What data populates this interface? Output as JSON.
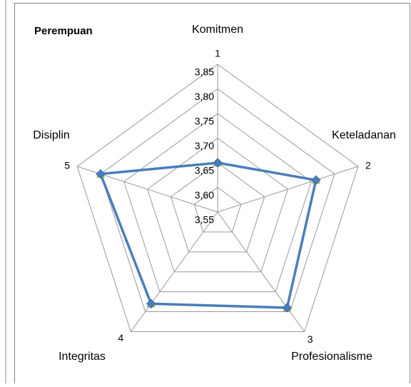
{
  "chart_data": {
    "type": "radar",
    "title": "Perempuan",
    "categories": [
      "Komitmen",
      "Keteladanan",
      "Profesionalisme",
      "Integritas",
      "Disiplin"
    ],
    "axis_numbers": [
      "1",
      "2",
      "3",
      "4",
      "5"
    ],
    "series": [
      {
        "color": "#4a7ebb",
        "values": [
          3.65,
          3.76,
          3.79,
          3.78,
          3.8
        ]
      }
    ],
    "ylim": [
      3.55,
      3.85
    ],
    "yticks": [
      {
        "value": 3.55,
        "label": "3,55"
      },
      {
        "value": 3.6,
        "label": "3,60"
      },
      {
        "value": 3.65,
        "label": "3,65"
      },
      {
        "value": 3.7,
        "label": "3,70"
      },
      {
        "value": 3.75,
        "label": "3,75"
      },
      {
        "value": 3.8,
        "label": "3,80"
      },
      {
        "value": 3.85,
        "label": "3,85"
      }
    ],
    "grid": true
  }
}
